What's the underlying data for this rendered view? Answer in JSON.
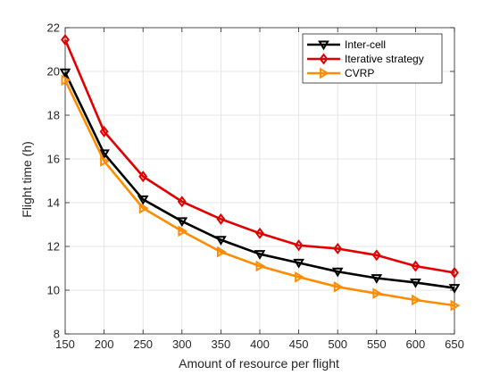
{
  "chart_data": {
    "type": "line",
    "title": "",
    "xlabel": "Amount of resource per flight",
    "ylabel": "Flight time (h)",
    "x": [
      150,
      200,
      250,
      300,
      350,
      400,
      450,
      500,
      550,
      600,
      650
    ],
    "xlim": [
      150,
      650
    ],
    "ylim": [
      8,
      22
    ],
    "xticks": [
      "150",
      "200",
      "250",
      "300",
      "350",
      "400",
      "450",
      "500",
      "550",
      "600",
      "650"
    ],
    "yticks": [
      "8",
      "10",
      "12",
      "14",
      "16",
      "18",
      "20",
      "22"
    ],
    "grid": true,
    "legend_position": "top-right",
    "series": [
      {
        "name": "Inter-cell",
        "color": "#000000",
        "marker": "triangle-down",
        "values": [
          19.95,
          16.25,
          14.15,
          13.15,
          12.3,
          11.65,
          11.25,
          10.85,
          10.55,
          10.35,
          10.1
        ]
      },
      {
        "name": "Iterative strategy",
        "color": "#e00000",
        "marker": "diamond",
        "values": [
          21.45,
          17.25,
          15.2,
          14.05,
          13.25,
          12.6,
          12.05,
          11.9,
          11.6,
          11.1,
          10.8
        ]
      },
      {
        "name": "CVRP",
        "color": "#ff8c00",
        "marker": "triangle-right",
        "values": [
          19.6,
          15.9,
          13.75,
          12.7,
          11.75,
          11.1,
          10.6,
          10.15,
          9.85,
          9.55,
          9.3
        ]
      }
    ]
  }
}
